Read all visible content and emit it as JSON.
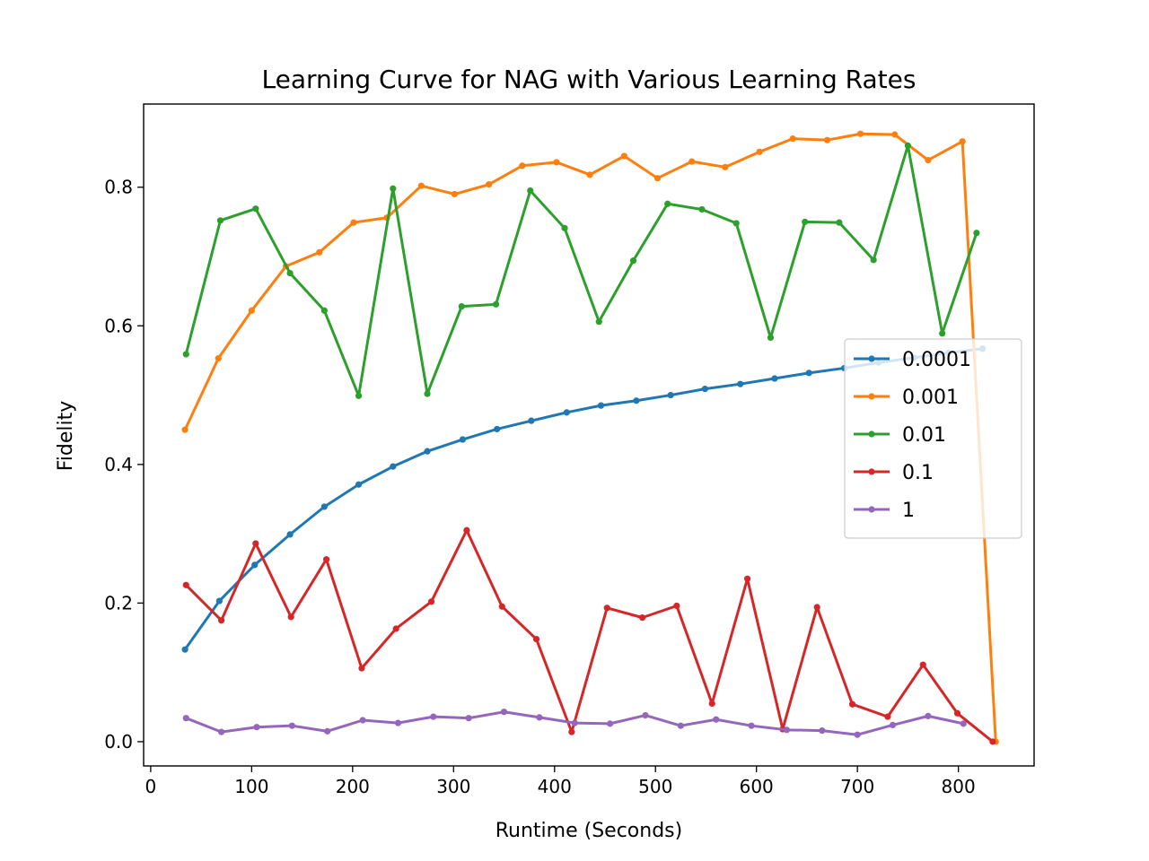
{
  "chart_data": {
    "type": "line",
    "title": "Learning Curve for NAG with Various Learning Rates",
    "xlabel": "Runtime (Seconds)",
    "ylabel": "Fidelity",
    "xlim": [
      -7,
      875
    ],
    "ylim": [
      -0.035,
      0.92
    ],
    "xticks": [
      0,
      100,
      200,
      300,
      400,
      500,
      600,
      700,
      800
    ],
    "xtick_labels": [
      "0",
      "100",
      "200",
      "300",
      "400",
      "500",
      "600",
      "700",
      "800"
    ],
    "yticks": [
      0.0,
      0.2,
      0.4,
      0.6,
      0.8
    ],
    "ytick_labels": [
      "0.0",
      "0.2",
      "0.4",
      "0.6",
      "0.8"
    ],
    "grid": false,
    "legend_position": "center-right",
    "series": [
      {
        "name": "0.0001",
        "color": "#1f77b4",
        "x": [
          34,
          68,
          103,
          138,
          172,
          206,
          240,
          274,
          309,
          343,
          377,
          412,
          446,
          481,
          515,
          549,
          584,
          618,
          652,
          687,
          721,
          756,
          790,
          824
        ],
        "y": [
          0.133,
          0.203,
          0.255,
          0.299,
          0.339,
          0.371,
          0.397,
          0.419,
          0.436,
          0.451,
          0.463,
          0.475,
          0.485,
          0.492,
          0.5,
          0.509,
          0.516,
          0.524,
          0.532,
          0.539,
          0.547,
          0.554,
          0.561,
          0.567
        ]
      },
      {
        "name": "0.001",
        "color": "#ff7f0e",
        "x": [
          34,
          67,
          100,
          134,
          167,
          201,
          234,
          268,
          301,
          335,
          368,
          402,
          435,
          469,
          502,
          536,
          569,
          603,
          636,
          670,
          703,
          737,
          770,
          804,
          837
        ],
        "y": [
          0.45,
          0.553,
          0.622,
          0.686,
          0.706,
          0.749,
          0.756,
          0.802,
          0.79,
          0.804,
          0.831,
          0.836,
          0.818,
          0.845,
          0.813,
          0.837,
          0.829,
          0.851,
          0.87,
          0.868,
          0.877,
          0.876,
          0.839,
          0.866,
          0
        ]
      },
      {
        "name": "0.01",
        "color": "#2ca02c",
        "x": [
          35,
          69,
          104,
          138,
          172,
          206,
          240,
          274,
          308,
          342,
          376,
          410,
          444,
          478,
          512,
          546,
          580,
          614,
          648,
          682,
          716,
          750,
          784,
          818
        ],
        "y": [
          0.559,
          0.752,
          0.769,
          0.676,
          0.622,
          0.499,
          0.798,
          0.502,
          0.628,
          0.631,
          0.795,
          0.741,
          0.606,
          0.694,
          0.776,
          0.768,
          0.748,
          0.583,
          0.75,
          0.749,
          0.695,
          0.86,
          0.589,
          0.734
        ]
      },
      {
        "name": "0.1",
        "color": "#d62728",
        "x": [
          35,
          70,
          104,
          139,
          174,
          209,
          243,
          278,
          313,
          348,
          382,
          417,
          452,
          487,
          521,
          556,
          591,
          626,
          660,
          695,
          730,
          765,
          799,
          834
        ],
        "y": [
          0.226,
          0.175,
          0.286,
          0.18,
          0.263,
          0.106,
          0.163,
          0.202,
          0.305,
          0.195,
          0.148,
          0.014,
          0.193,
          0.179,
          0.196,
          0.055,
          0.235,
          0.018,
          0.194,
          0.054,
          0.036,
          0.111,
          0.041,
          0
        ]
      },
      {
        "name": "1",
        "color": "#9467bd",
        "x": [
          35,
          70,
          105,
          140,
          175,
          210,
          245,
          280,
          315,
          350,
          385,
          420,
          455,
          490,
          525,
          560,
          595,
          630,
          665,
          700,
          735,
          770,
          805
        ],
        "y": [
          0.034,
          0.014,
          0.021,
          0.023,
          0.015,
          0.031,
          0.027,
          0.036,
          0.034,
          0.043,
          0.035,
          0.027,
          0.026,
          0.038,
          0.023,
          0.032,
          0.023,
          0.017,
          0.016,
          0.01,
          0.024,
          0.037,
          0.026
        ]
      }
    ]
  }
}
